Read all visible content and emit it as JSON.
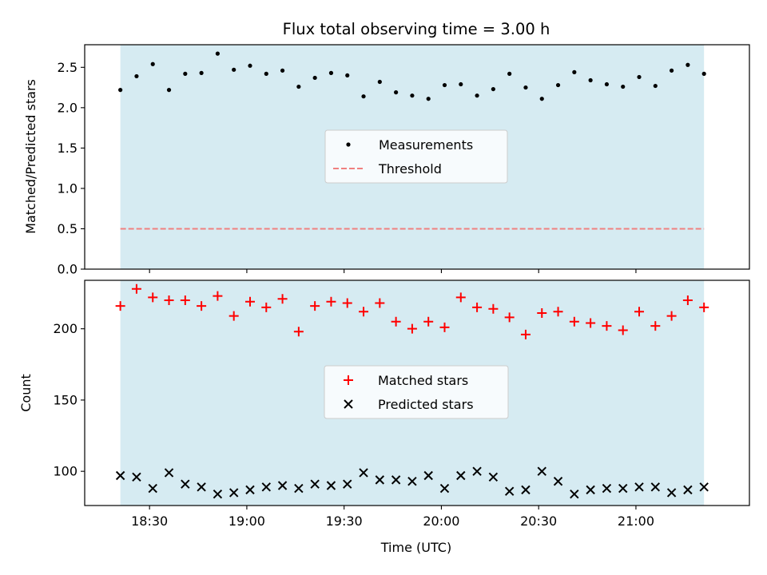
{
  "title": "Flux total observing time = 3.00 h",
  "colors": {
    "shade": "#add8e6",
    "measurement": "#000000",
    "threshold": "#f08080",
    "matched": "#ff0000",
    "predicted": "#000000"
  },
  "chart_data": [
    {
      "type": "scatter",
      "ylabel": "Matched/Predicted stars",
      "ylim": [
        0,
        2.78
      ],
      "yticks": [
        "0.0",
        "0.5",
        "1.0",
        "1.5",
        "2.0",
        "2.5"
      ],
      "xlim": [
        "18:10",
        "21:35"
      ],
      "shaded_range": [
        "18:21",
        "21:21"
      ],
      "legend": {
        "placement": "center",
        "entries": [
          "Measurements",
          "Threshold"
        ]
      },
      "threshold": 0.5,
      "series": [
        {
          "name": "Measurements",
          "x": [
            "18:21",
            "18:26",
            "18:31",
            "18:36",
            "18:41",
            "18:46",
            "18:51",
            "18:56",
            "19:01",
            "19:06",
            "19:11",
            "19:16",
            "19:21",
            "19:26",
            "19:31",
            "19:36",
            "19:41",
            "19:46",
            "19:51",
            "19:56",
            "20:01",
            "20:06",
            "20:11",
            "20:16",
            "20:21",
            "20:26",
            "20:31",
            "20:36",
            "20:41",
            "20:46",
            "20:51",
            "20:56",
            "21:01",
            "21:06",
            "21:11",
            "21:16",
            "21:21"
          ],
          "y": [
            2.22,
            2.39,
            2.54,
            2.22,
            2.42,
            2.43,
            2.67,
            2.47,
            2.52,
            2.42,
            2.46,
            2.26,
            2.37,
            2.43,
            2.4,
            2.14,
            2.32,
            2.19,
            2.15,
            2.11,
            2.28,
            2.29,
            2.15,
            2.23,
            2.42,
            2.25,
            2.11,
            2.28,
            2.44,
            2.34,
            2.29,
            2.26,
            2.38,
            2.27,
            2.46,
            2.53,
            2.42
          ]
        }
      ]
    },
    {
      "type": "scatter",
      "xlabel": "Time (UTC)",
      "ylabel": "Count",
      "ylim": [
        76,
        234
      ],
      "yticks": [
        "100",
        "150",
        "200"
      ],
      "xlim": [
        "18:10",
        "21:35"
      ],
      "xticks": [
        "18:30",
        "19:00",
        "19:30",
        "20:00",
        "20:30",
        "21:00"
      ],
      "shaded_range": [
        "18:21",
        "21:21"
      ],
      "legend": {
        "placement": "center",
        "entries": [
          "Matched stars",
          "Predicted stars"
        ]
      },
      "series": [
        {
          "name": "Matched stars",
          "x": [
            "18:21",
            "18:26",
            "18:31",
            "18:36",
            "18:41",
            "18:46",
            "18:51",
            "18:56",
            "19:01",
            "19:06",
            "19:11",
            "19:16",
            "19:21",
            "19:26",
            "19:31",
            "19:36",
            "19:41",
            "19:46",
            "19:51",
            "19:56",
            "20:01",
            "20:06",
            "20:11",
            "20:16",
            "20:21",
            "20:26",
            "20:31",
            "20:36",
            "20:41",
            "20:46",
            "20:51",
            "20:56",
            "21:01",
            "21:06",
            "21:11",
            "21:16",
            "21:21"
          ],
          "y": [
            216,
            228,
            222,
            220,
            220,
            216,
            223,
            209,
            219,
            215,
            221,
            198,
            216,
            219,
            218,
            212,
            218,
            205,
            200,
            205,
            201,
            222,
            215,
            214,
            208,
            196,
            211,
            212,
            205,
            204,
            202,
            199,
            212,
            202,
            209,
            220,
            215
          ]
        },
        {
          "name": "Predicted stars",
          "x": [
            "18:21",
            "18:26",
            "18:31",
            "18:36",
            "18:41",
            "18:46",
            "18:51",
            "18:56",
            "19:01",
            "19:06",
            "19:11",
            "19:16",
            "19:21",
            "19:26",
            "19:31",
            "19:36",
            "19:41",
            "19:46",
            "19:51",
            "19:56",
            "20:01",
            "20:06",
            "20:11",
            "20:16",
            "20:21",
            "20:26",
            "20:31",
            "20:36",
            "20:41",
            "20:46",
            "20:51",
            "20:56",
            "21:01",
            "21:06",
            "21:11",
            "21:16",
            "21:21"
          ],
          "y": [
            97,
            96,
            88,
            99,
            91,
            89,
            84,
            85,
            87,
            89,
            90,
            88,
            91,
            90,
            91,
            99,
            94,
            94,
            93,
            97,
            88,
            97,
            100,
            96,
            86,
            87,
            100,
            93,
            84,
            87,
            88,
            88,
            89,
            89,
            85,
            87,
            89
          ]
        }
      ]
    }
  ]
}
